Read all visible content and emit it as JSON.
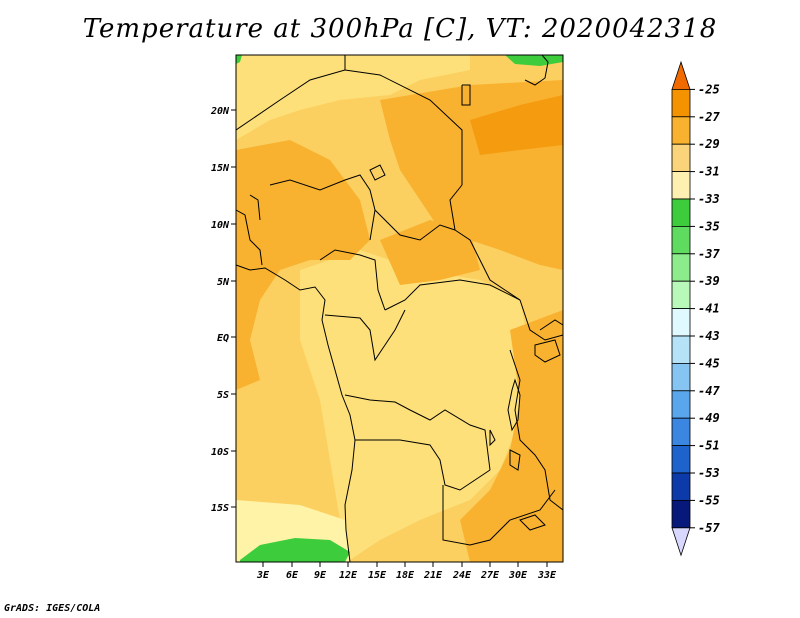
{
  "title": "Temperature at 300hPa [C], VT: 2020042318",
  "footer": "GrADS: IGES/COLA",
  "map": {
    "lat_labels": [
      "20N",
      "15N",
      "10N",
      "5N",
      "EQ",
      "5S",
      "10S",
      "15S"
    ],
    "lon_labels": [
      "3E",
      "6E",
      "9E",
      "12E",
      "15E",
      "18E",
      "21E",
      "24E",
      "27E",
      "30E",
      "33E"
    ]
  },
  "colorbar": {
    "labels": [
      "-25",
      "-27",
      "-29",
      "-31",
      "-33",
      "-35",
      "-37",
      "-39",
      "-41",
      "-43",
      "-45",
      "-47",
      "-49",
      "-51",
      "-53",
      "-55",
      "-57"
    ],
    "colors": [
      "#f06a00",
      "#f59200",
      "#f9b230",
      "#fbd37a",
      "#fdf0b0",
      "#3ccc3c",
      "#5fdc5f",
      "#8cec8c",
      "#b8f8b8",
      "#e0f8ff",
      "#b6e2f8",
      "#86c4f2",
      "#5aa6ec",
      "#3a86e0",
      "#1e62cc",
      "#0c3aa8",
      "#06187a",
      "#d8d8ff"
    ]
  },
  "colors": {
    "land_light": "#fde07a",
    "land_mid": "#fbd060",
    "land_dark": "#f9b230",
    "land_darker": "#f59b10",
    "cool_pale": "#fff3a8",
    "green": "#3ccc3c"
  }
}
